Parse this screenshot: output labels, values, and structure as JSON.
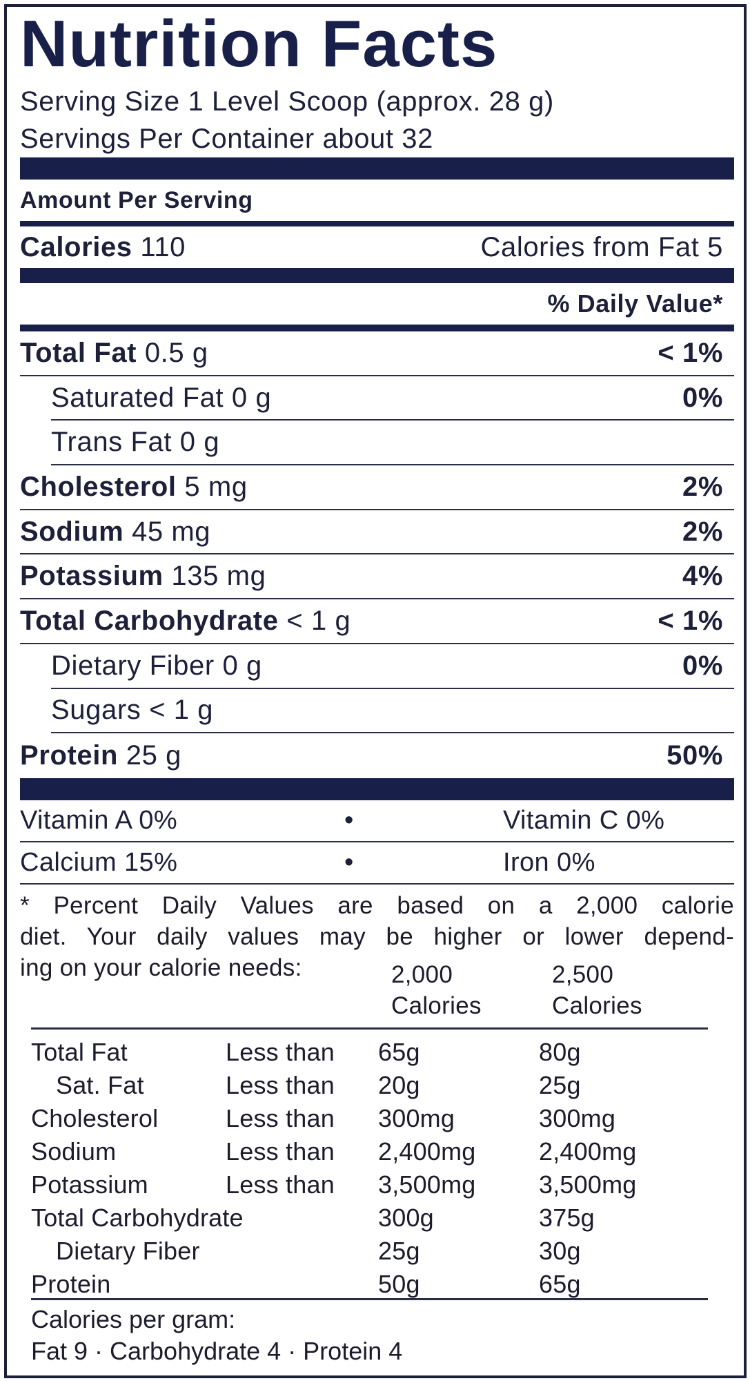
{
  "title": "Nutrition Facts",
  "serving_size": "Serving Size 1 Level Scoop (approx. 28 g)",
  "servings_per_container": "Servings Per Container about 32",
  "amount_per_serving": "Amount Per Serving",
  "calories": {
    "label": "Calories",
    "value": "110",
    "from_fat": "Calories from Fat 5"
  },
  "daily_value_header": "% Daily Value*",
  "nutrients": [
    {
      "name": "Total Fat",
      "amount": "0.5 g",
      "dv": "< 1%"
    },
    {
      "name": "Saturated Fat",
      "amount": "0 g",
      "dv": "0%"
    },
    {
      "name": "Trans Fat",
      "amount": "0 g",
      "dv": ""
    },
    {
      "name": "Cholesterol",
      "amount": "5 mg",
      "dv": "2%"
    },
    {
      "name": "Sodium",
      "amount": "45 mg",
      "dv": "2%"
    },
    {
      "name": "Potassium",
      "amount": "135 mg",
      "dv": "4%"
    },
    {
      "name": "Total Carbohydrate",
      "amount": "< 1 g",
      "dv": "< 1%"
    },
    {
      "name": "Dietary Fiber",
      "amount": "0 g",
      "dv": "0%"
    },
    {
      "name": "Sugars",
      "amount": "< 1 g",
      "dv": ""
    },
    {
      "name": "Protein",
      "amount": "25 g",
      "dv": "50%"
    }
  ],
  "vitamins": [
    {
      "left": "Vitamin A 0%",
      "sep": "•",
      "right": "Vitamin C 0%"
    },
    {
      "left": "Calcium 15%",
      "sep": "•",
      "right": "Iron 0%"
    }
  ],
  "footnote": {
    "line1": "* Percent Daily Values are based on a 2,000 calorie",
    "line2": "diet. Your daily values may be higher or lower depend-",
    "line3": "ing on your calorie needs:"
  },
  "table": {
    "headers": [
      {
        "top": "2,000",
        "bottom": "Calories"
      },
      {
        "top": "2,500",
        "bottom": "Calories"
      }
    ],
    "rows": [
      {
        "name": "Total Fat",
        "qual": "Less than",
        "c1": "65g",
        "c2": "80g"
      },
      {
        "name": "Sat. Fat",
        "qual": "Less than",
        "c1": "20g",
        "c2": "25g"
      },
      {
        "name": "Cholesterol",
        "qual": "Less than",
        "c1": "300mg",
        "c2": "300mg"
      },
      {
        "name": "Sodium",
        "qual": "Less than",
        "c1": "2,400mg",
        "c2": "2,400mg"
      },
      {
        "name": "Potassium",
        "qual": "Less than",
        "c1": "3,500mg",
        "c2": "3,500mg"
      },
      {
        "name": "Total Carbohydrate",
        "qual": "",
        "c1": "300g",
        "c2": "375g"
      },
      {
        "name": "Dietary Fiber",
        "qual": "",
        "c1": "25g",
        "c2": "30g"
      },
      {
        "name": "Protein",
        "qual": "",
        "c1": "50g",
        "c2": "65g"
      }
    ]
  },
  "calories_per_gram": {
    "label": "Calories per gram:",
    "values": "Fat 9 · Carbohydrate 4 · Protein 4"
  }
}
